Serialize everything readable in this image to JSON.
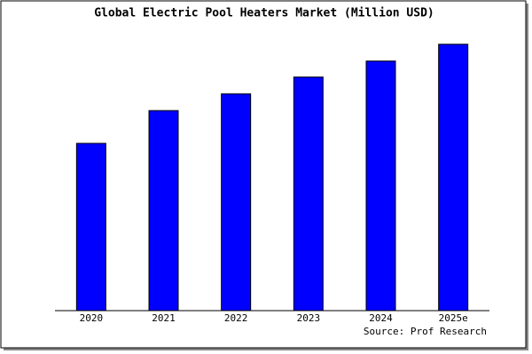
{
  "chart_data": {
    "type": "bar",
    "title": "Global Electric Pool Heaters Market (Million USD)",
    "categories": [
      "2020",
      "2021",
      "2022",
      "2023",
      "2024",
      "2025e"
    ],
    "values": [
      62.8,
      75.1,
      81.4,
      87.7,
      93.7,
      100
    ],
    "color": "#0000ff",
    "source": "Source: Prof Research"
  }
}
